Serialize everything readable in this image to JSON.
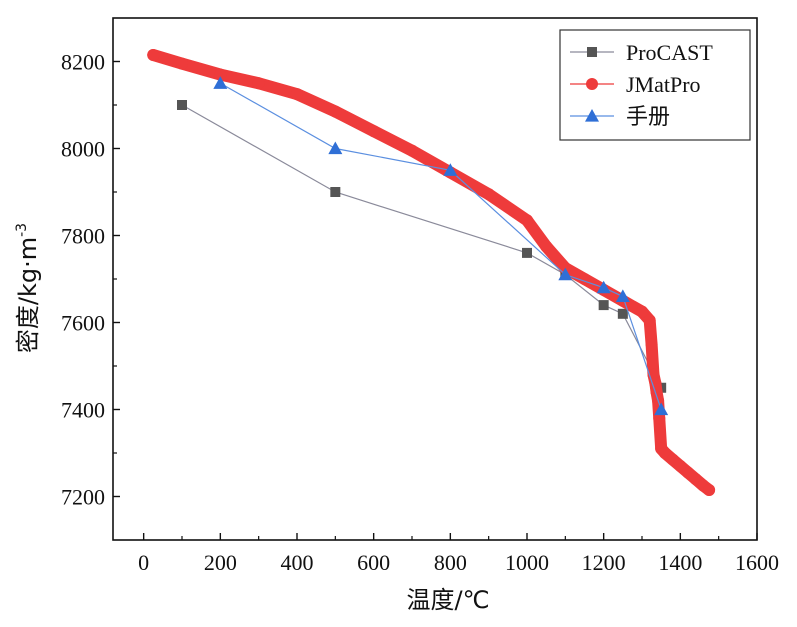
{
  "chart_data": {
    "type": "line",
    "xlabel": "温度/℃",
    "ylabel": "密度/kg·m",
    "ylabel_sup": "-3",
    "xlim": [
      -80,
      1600
    ],
    "ylim": [
      7100,
      8300
    ],
    "xticks": [
      0,
      200,
      400,
      600,
      800,
      1000,
      1200,
      1400,
      1600
    ],
    "yticks": [
      7200,
      7400,
      7600,
      7800,
      8000,
      8200
    ],
    "grid": false,
    "legend_position": "top-right",
    "series": [
      {
        "name": "ProCAST",
        "marker": "square",
        "color": "#555555",
        "line_color": "#8a8a9a",
        "x": [
          100,
          500,
          1000,
          1100,
          1200,
          1250,
          1350
        ],
        "y": [
          8100,
          7900,
          7760,
          7710,
          7640,
          7620,
          7450
        ]
      },
      {
        "name": "JMatPro",
        "marker": "circle",
        "color": "#ee3b3b",
        "line_color": "#ee3b3b",
        "x": [
          25,
          100,
          200,
          300,
          400,
          500,
          600,
          700,
          800,
          900,
          1000,
          1050,
          1100,
          1150,
          1200,
          1250,
          1300,
          1320,
          1325,
          1330,
          1335,
          1338,
          1342,
          1345,
          1350,
          1360,
          1380,
          1400,
          1420,
          1440,
          1460,
          1475
        ],
        "y": [
          8215,
          8195,
          8170,
          8150,
          8125,
          8085,
          8040,
          7995,
          7945,
          7895,
          7835,
          7775,
          7725,
          7700,
          7675,
          7650,
          7625,
          7605,
          7550,
          7480,
          7460,
          7440,
          7420,
          7380,
          7310,
          7300,
          7285,
          7270,
          7255,
          7240,
          7225,
          7215
        ]
      },
      {
        "name": "手册",
        "marker": "triangle",
        "color": "#2f6fd6",
        "line_color": "#5b8fe0",
        "x": [
          200,
          500,
          800,
          1100,
          1200,
          1250,
          1350
        ],
        "y": [
          8150,
          8000,
          7950,
          7710,
          7680,
          7660,
          7400
        ]
      }
    ]
  }
}
